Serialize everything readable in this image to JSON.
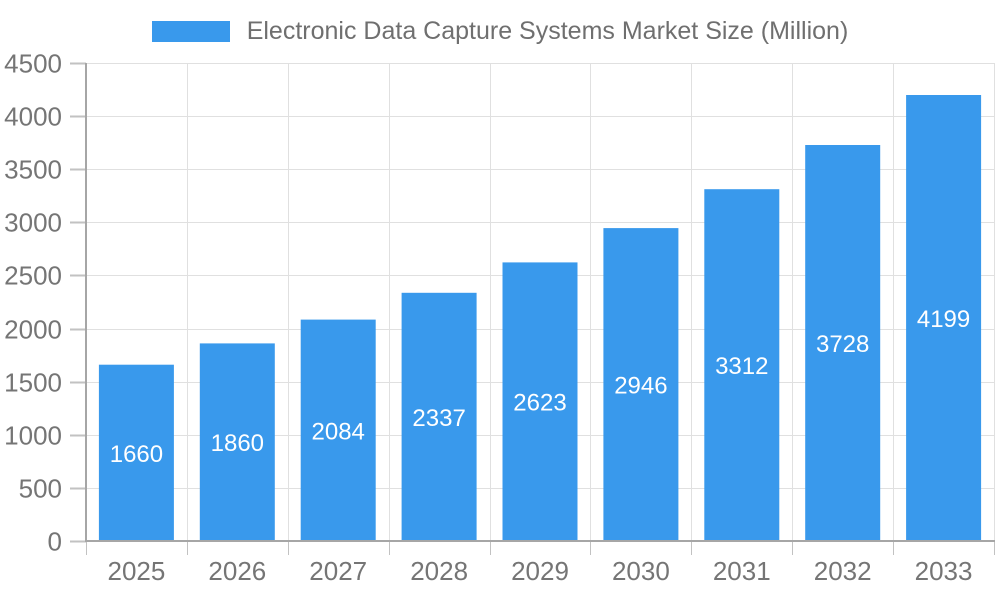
{
  "chart_data": {
    "type": "bar",
    "title": "Electronic Data Capture Systems Market Size (Million)",
    "categories": [
      "2025",
      "2026",
      "2027",
      "2028",
      "2029",
      "2030",
      "2031",
      "2032",
      "2033"
    ],
    "values": [
      1660,
      1860,
      2084,
      2337,
      2623,
      2946,
      3312,
      3728,
      4199
    ],
    "series": [
      {
        "name": "Electronic Data Capture Systems Market Size (Million)",
        "values": [
          1660,
          1860,
          2084,
          2337,
          2623,
          2946,
          3312,
          3728,
          4199
        ]
      }
    ],
    "xlabel": "",
    "ylabel": "",
    "ylim": [
      0,
      4500
    ],
    "y_tick_step": 500,
    "y_tick_labels": [
      "0",
      "500",
      "1000",
      "1500",
      "2000",
      "2500",
      "3000",
      "3500",
      "4000",
      "4500"
    ],
    "grid": true,
    "legend_position": "top",
    "bar_labels_inside": true,
    "colors": {
      "bar": "#3999EC",
      "bar_label": "#FFFFFF",
      "grid": "#E0E0E0",
      "axis": "#A6A6A6",
      "tick": "#C2C2C2",
      "tick_label": "#757575",
      "legend_text": "#6F6F6F",
      "background": "#FFFFFF"
    }
  }
}
